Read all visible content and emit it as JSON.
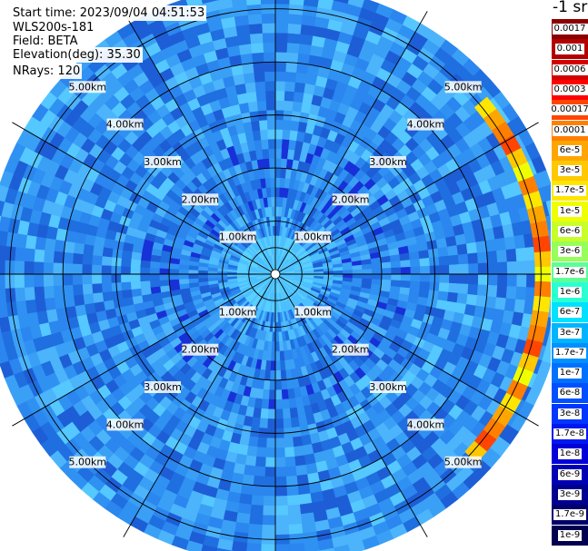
{
  "header": {
    "start_time": "Start time: 2023/09/04 04:51:53",
    "instrument": "WLS200s-181",
    "field": "Field: BETA",
    "elevation": "Elevation(deg): 35.30",
    "nrays": "NRays: 120"
  },
  "colorbar": {
    "units": "-1 sr",
    "labels": [
      "0.0017",
      "0.001",
      "0.0006",
      "0.0003",
      "0.00017",
      "0.0001",
      "6e-5",
      "3e-5",
      "1.7e-5",
      "1e-5",
      "6e-6",
      "3e-6",
      "1.7e-6",
      "1e-6",
      "6e-7",
      "3e-7",
      "1.7e-7",
      "1e-7",
      "6e-8",
      "3e-8",
      "1.7e-8",
      "1e-8",
      "6e-9",
      "3e-9",
      "1.7e-9",
      "1e-9"
    ],
    "colors": [
      "#8b0000",
      "#b30000",
      "#d40000",
      "#ff0000",
      "#ff4500",
      "#ff7f00",
      "#ffa500",
      "#ffc800",
      "#ffe600",
      "#f0ff00",
      "#c8ff2a",
      "#96ff5a",
      "#5cff96",
      "#2affd4",
      "#00e0ff",
      "#00b4ff",
      "#0090ff",
      "#0070ff",
      "#0050ff",
      "#0036ff",
      "#0018f0",
      "#0000d8",
      "#0000b4",
      "#000090",
      "#00006c",
      "#000050"
    ]
  },
  "radar": {
    "ring_labels": [
      "1.00km",
      "2.00km",
      "3.00km",
      "4.00km",
      "5.00km"
    ],
    "nrays": 120,
    "max_range_km": 5.2
  }
}
